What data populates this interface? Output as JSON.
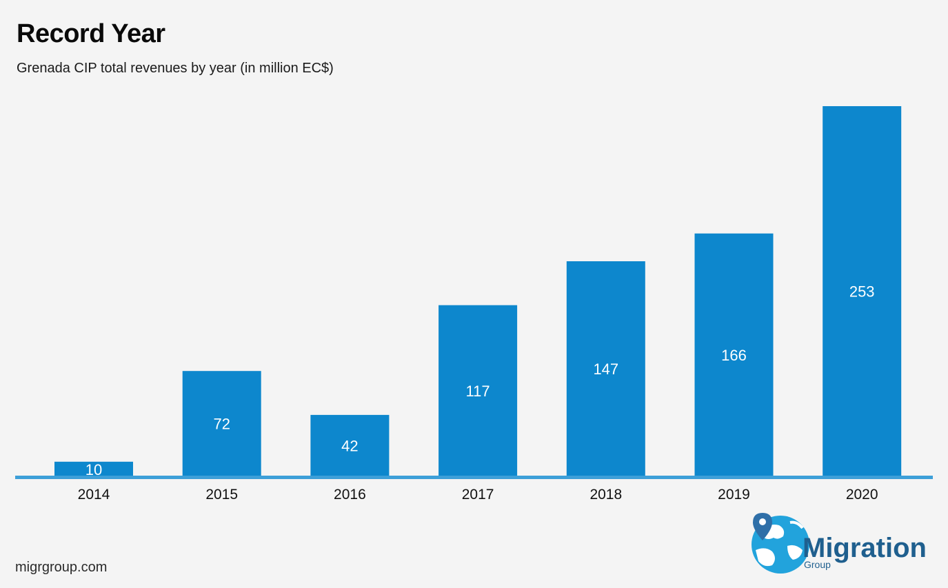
{
  "chart_data": {
    "type": "bar",
    "title": "Record Year",
    "subtitle": "Grenada CIP total revenues by year (in million EC$)",
    "categories": [
      "2014",
      "2015",
      "2016",
      "2017",
      "2018",
      "2019",
      "2020"
    ],
    "values": [
      10,
      72,
      42,
      117,
      147,
      166,
      253
    ],
    "data_labels": [
      "10",
      "72",
      "42",
      "117",
      "147",
      "166",
      "253"
    ],
    "xlabel": "",
    "ylabel": "",
    "ylim": [
      0,
      253
    ],
    "grid": false,
    "legend": "none",
    "bar_color": "#0d87cd",
    "axis_color": "#3d9fd8",
    "label_color": "#ffffff"
  },
  "footer": {
    "url": "migrgroup.com"
  },
  "logo": {
    "name": "Migration",
    "sub": "Group",
    "text_color": "#1f5f8e",
    "globe_color": "#22a3dc",
    "pin_color": "#2f6fa8"
  }
}
